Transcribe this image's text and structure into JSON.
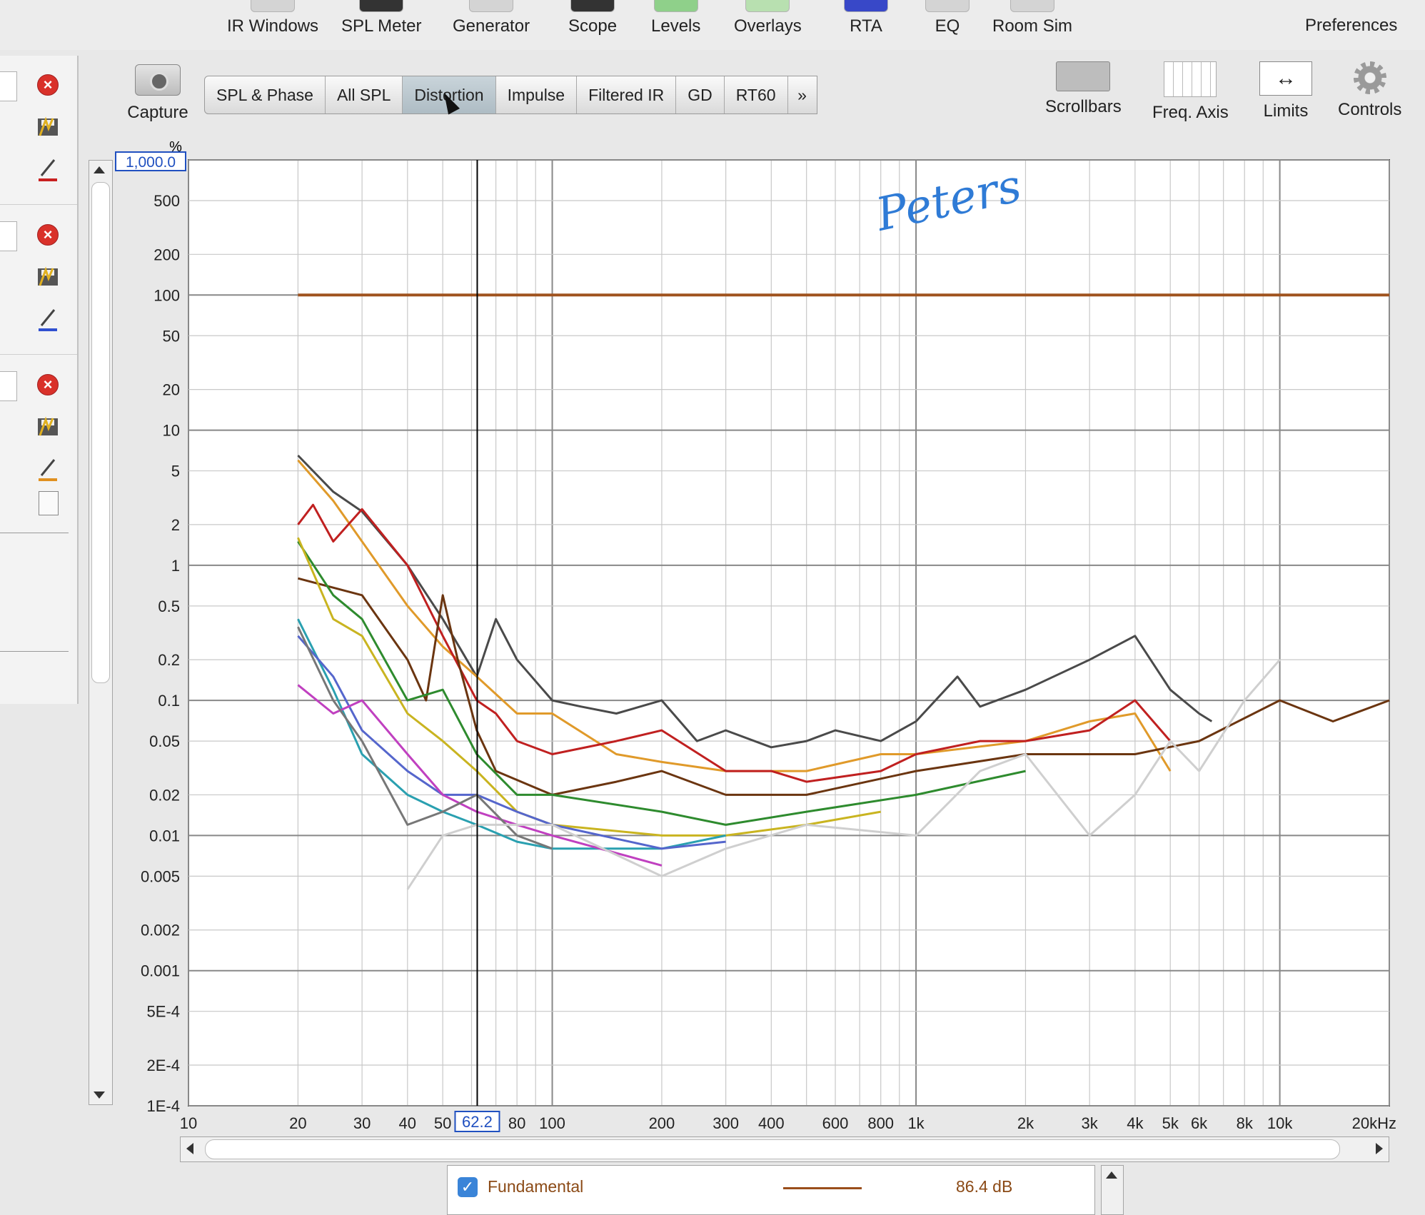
{
  "toolbar": {
    "items": [
      {
        "label": "IR Windows"
      },
      {
        "label": "SPL Meter"
      },
      {
        "label": "Generator"
      },
      {
        "label": "Scope"
      },
      {
        "label": "Levels"
      },
      {
        "label": "Overlays"
      },
      {
        "label": "RTA"
      },
      {
        "label": "EQ"
      },
      {
        "label": "Room Sim"
      },
      {
        "label": "Preferences"
      }
    ]
  },
  "capture": {
    "label": "Capture"
  },
  "tabs": [
    {
      "label": "SPL & Phase"
    },
    {
      "label": "All SPL"
    },
    {
      "label": "Distortion",
      "active": true
    },
    {
      "label": "Impulse"
    },
    {
      "label": "Filtered IR"
    },
    {
      "label": "GD"
    },
    {
      "label": "RT60"
    },
    {
      "label": "»"
    }
  ],
  "controls": {
    "scrollbars": "Scrollbars",
    "freq_axis": "Freq. Axis",
    "limits": "Limits",
    "controls": "Controls"
  },
  "chart_data": {
    "type": "line",
    "ylabel": "%",
    "yscale": "log",
    "xscale": "log",
    "ylim": [
      0.0001,
      1000
    ],
    "xlim": [
      10,
      20000
    ],
    "y_max_box": "1,000.0",
    "y_ticks": [
      "500",
      "200",
      "100",
      "50",
      "20",
      "10",
      "5",
      "2",
      "1",
      "0.5",
      "0.2",
      "0.1",
      "0.05",
      "0.02",
      "0.01",
      "0.005",
      "0.002",
      "0.001",
      "5E-4",
      "2E-4",
      "1E-4"
    ],
    "y_tick_values": [
      500,
      200,
      100,
      50,
      20,
      10,
      5,
      2,
      1,
      0.5,
      0.2,
      0.1,
      0.05,
      0.02,
      0.01,
      0.005,
      0.002,
      0.001,
      0.0005,
      0.0002,
      0.0001
    ],
    "x_ticks": [
      "10",
      "20",
      "30",
      "40",
      "50",
      "80",
      "100",
      "200",
      "300",
      "400",
      "600",
      "800",
      "1k",
      "2k",
      "3k",
      "4k",
      "5k",
      "6k",
      "8k",
      "10k",
      "20kHz"
    ],
    "x_tick_values": [
      10,
      20,
      30,
      40,
      50,
      80,
      100,
      200,
      300,
      400,
      600,
      800,
      1000,
      2000,
      3000,
      4000,
      5000,
      6000,
      8000,
      10000,
      20000
    ],
    "cursor": {
      "x": 62.2,
      "label": "62.2"
    },
    "annotation": "Peters",
    "series": [
      {
        "name": "Fundamental",
        "color": "#a0531f",
        "x": [
          20,
          20000
        ],
        "y": [
          100,
          100
        ]
      },
      {
        "color": "#4a4a4a",
        "x": [
          20,
          25,
          30,
          40,
          50,
          62,
          70,
          80,
          100,
          120,
          150,
          200,
          250,
          300,
          400,
          500,
          600,
          800,
          1000,
          1300,
          1500,
          2000,
          3000,
          4000,
          5000,
          6000,
          6500
        ],
        "y": [
          6.5,
          3.5,
          2.5,
          1.0,
          0.4,
          0.15,
          0.4,
          0.2,
          0.1,
          0.09,
          0.08,
          0.1,
          0.05,
          0.06,
          0.045,
          0.05,
          0.06,
          0.05,
          0.07,
          0.15,
          0.09,
          0.12,
          0.2,
          0.3,
          0.12,
          0.08,
          0.07
        ]
      },
      {
        "color": "#e09a2a",
        "x": [
          20,
          25,
          30,
          40,
          50,
          62,
          80,
          100,
          150,
          200,
          300,
          500,
          800,
          1000,
          2000,
          3000,
          4000,
          5000
        ],
        "y": [
          6.0,
          3.0,
          1.5,
          0.5,
          0.25,
          0.15,
          0.08,
          0.08,
          0.04,
          0.035,
          0.03,
          0.03,
          0.04,
          0.04,
          0.05,
          0.07,
          0.08,
          0.03
        ]
      },
      {
        "color": "#c02020",
        "x": [
          20,
          22,
          25,
          30,
          40,
          50,
          62,
          70,
          80,
          100,
          150,
          200,
          300,
          400,
          500,
          800,
          1000,
          1500,
          2000,
          3000,
          4000,
          5000
        ],
        "y": [
          2.0,
          2.8,
          1.5,
          2.6,
          1.0,
          0.3,
          0.1,
          0.08,
          0.05,
          0.04,
          0.05,
          0.06,
          0.03,
          0.03,
          0.025,
          0.03,
          0.04,
          0.05,
          0.05,
          0.06,
          0.1,
          0.05
        ]
      },
      {
        "color": "#6b3510",
        "x": [
          20,
          30,
          40,
          45,
          50,
          55,
          62,
          70,
          100,
          150,
          200,
          300,
          500,
          1000,
          2000,
          4000,
          6000,
          10000,
          14000,
          20000
        ],
        "y": [
          0.8,
          0.6,
          0.2,
          0.1,
          0.6,
          0.2,
          0.06,
          0.03,
          0.02,
          0.025,
          0.03,
          0.02,
          0.02,
          0.03,
          0.04,
          0.04,
          0.05,
          0.1,
          0.07,
          0.1
        ]
      },
      {
        "color": "#2e8b2e",
        "x": [
          20,
          25,
          30,
          40,
          50,
          62,
          80,
          100,
          200,
          300,
          500,
          1000,
          2000
        ],
        "y": [
          1.5,
          0.6,
          0.4,
          0.1,
          0.12,
          0.04,
          0.02,
          0.02,
          0.015,
          0.012,
          0.015,
          0.02,
          0.03
        ]
      },
      {
        "color": "#c9b420",
        "x": [
          20,
          25,
          30,
          40,
          50,
          62,
          80,
          100,
          200,
          300,
          500,
          800
        ],
        "y": [
          1.6,
          0.4,
          0.3,
          0.08,
          0.05,
          0.03,
          0.015,
          0.012,
          0.01,
          0.01,
          0.012,
          0.015
        ]
      },
      {
        "color": "#2aa0b0",
        "x": [
          20,
          25,
          30,
          40,
          50,
          62,
          80,
          100,
          200,
          300
        ],
        "y": [
          0.4,
          0.12,
          0.04,
          0.02,
          0.015,
          0.012,
          0.009,
          0.008,
          0.008,
          0.01
        ]
      },
      {
        "color": "#5566cc",
        "x": [
          20,
          25,
          30,
          40,
          50,
          62,
          80,
          100,
          200,
          300
        ],
        "y": [
          0.3,
          0.15,
          0.06,
          0.03,
          0.02,
          0.02,
          0.015,
          0.012,
          0.008,
          0.009
        ]
      },
      {
        "color": "#c040c0",
        "x": [
          20,
          25,
          30,
          40,
          50,
          62,
          80,
          100,
          200
        ],
        "y": [
          0.13,
          0.08,
          0.1,
          0.04,
          0.02,
          0.015,
          0.012,
          0.01,
          0.006
        ]
      },
      {
        "color": "#777777",
        "x": [
          20,
          25,
          30,
          40,
          50,
          62,
          80,
          100
        ],
        "y": [
          0.35,
          0.1,
          0.05,
          0.012,
          0.015,
          0.02,
          0.01,
          0.008
        ]
      },
      {
        "color": "#cfcfcf",
        "x": [
          40,
          50,
          62,
          100,
          200,
          300,
          500,
          1000,
          1500,
          2000,
          3000,
          4000,
          5000,
          6000,
          8000,
          10000
        ],
        "y": [
          0.004,
          0.01,
          0.012,
          0.012,
          0.005,
          0.008,
          0.012,
          0.01,
          0.03,
          0.04,
          0.01,
          0.02,
          0.05,
          0.03,
          0.1,
          0.2
        ]
      }
    ]
  },
  "legend": {
    "label": "Fundamental",
    "value": "86.4 dB",
    "color": "#a0531f"
  }
}
